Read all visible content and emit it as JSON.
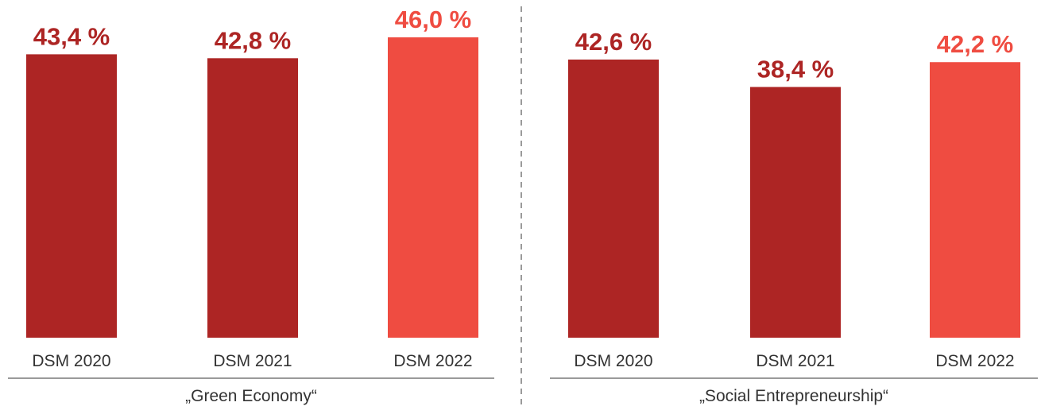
{
  "chart_data": [
    {
      "type": "bar",
      "group_label": "„Green Economy“",
      "categories": [
        "DSM 2020",
        "DSM 2021",
        "DSM 2022"
      ],
      "values": [
        43.4,
        42.8,
        46.0
      ],
      "value_labels": [
        "43,4 %",
        "42,8 %",
        "46,0 %"
      ],
      "colors": [
        "#ad2524",
        "#ad2524",
        "#ef4c41"
      ]
    },
    {
      "type": "bar",
      "group_label": "„Social Entrepreneurship“",
      "categories": [
        "DSM 2020",
        "DSM 2021",
        "DSM 2022"
      ],
      "values": [
        42.6,
        38.4,
        42.2
      ],
      "value_labels": [
        "42,6 %",
        "38,4 %",
        "42,2 %"
      ],
      "colors": [
        "#ad2524",
        "#ad2524",
        "#ef4c41"
      ]
    }
  ]
}
